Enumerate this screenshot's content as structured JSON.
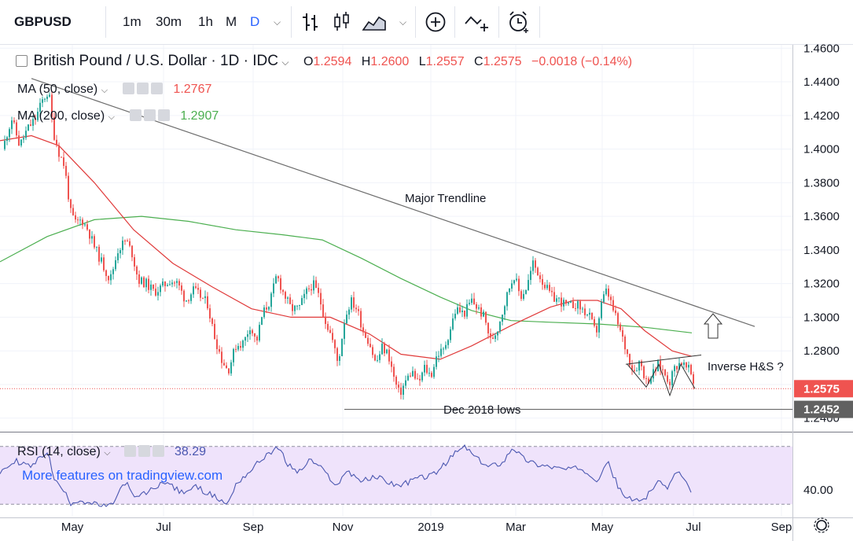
{
  "toolbar": {
    "symbol": "GBPUSD",
    "intervals": [
      "1m",
      "30m",
      "1h",
      "M",
      "D"
    ],
    "active_interval": "D",
    "icons": [
      "chevron-down-icon",
      "bar-style-icon",
      "candles-icon",
      "area-icon",
      "chevron-down-icon",
      "plus-circle-icon",
      "indicators-icon",
      "alarm-icon"
    ]
  },
  "legend": {
    "title": "British Pound / U.S. Dollar · 1D · IDC",
    "open_label": "O",
    "open": "1.2594",
    "high_label": "H",
    "high": "1.2600",
    "low_label": "L",
    "low": "1.2557",
    "close_label": "C",
    "close": "1.2575",
    "change": "−0.0018 (−0.14%)",
    "ma50_label": "MA (50, close)",
    "ma50_value": "1.2767",
    "ma200_label": "MA (200, close)",
    "ma200_value": "1.2907",
    "rsi_label": "RSI (14, close)",
    "rsi_value": "38.29"
  },
  "watermark": "More features on tradingview.com",
  "colors": {
    "up": "#26a69a",
    "down": "#ef5350",
    "ma50": "#e03a3a",
    "ma200": "#4caf50",
    "rsi": "#4a57b0",
    "rsi_band": "#efe3fb",
    "trend": "#6b6b6b",
    "text": "#131722"
  },
  "chart_data": {
    "type": "candlestick",
    "title": "British Pound / U.S. Dollar · 1D · IDC",
    "x_labels": [
      "May",
      "Jul",
      "Sep",
      "Nov",
      "2019",
      "Mar",
      "May",
      "Jul",
      "Sep"
    ],
    "y_ticks": [
      "1.4600",
      "1.4400",
      "1.4200",
      "1.4000",
      "1.3800",
      "1.3600",
      "1.3400",
      "1.3200",
      "1.3000",
      "1.2800",
      "1.2600",
      "1.2400"
    ],
    "ylim": [
      1.238,
      1.462
    ],
    "price_path": [
      [
        0,
        1.392
      ],
      [
        8,
        1.408
      ],
      [
        15,
        1.418
      ],
      [
        25,
        1.402
      ],
      [
        35,
        1.412
      ],
      [
        45,
        1.418
      ],
      [
        55,
        1.43
      ],
      [
        62,
        1.434
      ],
      [
        68,
        1.41
      ],
      [
        75,
        1.398
      ],
      [
        82,
        1.39
      ],
      [
        90,
        1.362
      ],
      [
        96,
        1.356
      ],
      [
        104,
        1.358
      ],
      [
        112,
        1.352
      ],
      [
        120,
        1.342
      ],
      [
        130,
        1.332
      ],
      [
        140,
        1.322
      ],
      [
        150,
        1.34
      ],
      [
        160,
        1.346
      ],
      [
        168,
        1.338
      ],
      [
        176,
        1.322
      ],
      [
        186,
        1.32
      ],
      [
        196,
        1.315
      ],
      [
        206,
        1.318
      ],
      [
        216,
        1.322
      ],
      [
        226,
        1.32
      ],
      [
        236,
        1.31
      ],
      [
        246,
        1.316
      ],
      [
        256,
        1.312
      ],
      [
        264,
        1.308
      ],
      [
        272,
        1.29
      ],
      [
        282,
        1.275
      ],
      [
        290,
        1.268
      ],
      [
        300,
        1.283
      ],
      [
        310,
        1.285
      ],
      [
        318,
        1.295
      ],
      [
        326,
        1.285
      ],
      [
        334,
        1.302
      ],
      [
        344,
        1.31
      ],
      [
        352,
        1.325
      ],
      [
        360,
        1.315
      ],
      [
        370,
        1.305
      ],
      [
        380,
        1.305
      ],
      [
        390,
        1.315
      ],
      [
        398,
        1.32
      ],
      [
        406,
        1.312
      ],
      [
        414,
        1.298
      ],
      [
        422,
        1.288
      ],
      [
        430,
        1.272
      ],
      [
        438,
        1.298
      ],
      [
        446,
        1.31
      ],
      [
        454,
        1.305
      ],
      [
        462,
        1.292
      ],
      [
        470,
        1.285
      ],
      [
        478,
        1.272
      ],
      [
        486,
        1.282
      ],
      [
        494,
        1.278
      ],
      [
        502,
        1.262
      ],
      [
        508,
        1.254
      ],
      [
        516,
        1.262
      ],
      [
        524,
        1.268
      ],
      [
        532,
        1.26
      ],
      [
        540,
        1.27
      ],
      [
        548,
        1.265
      ],
      [
        556,
        1.278
      ],
      [
        564,
        1.28
      ],
      [
        572,
        1.292
      ],
      [
        580,
        1.305
      ],
      [
        590,
        1.302
      ],
      [
        600,
        1.31
      ],
      [
        608,
        1.305
      ],
      [
        616,
        1.3
      ],
      [
        624,
        1.286
      ],
      [
        632,
        1.292
      ],
      [
        640,
        1.305
      ],
      [
        648,
        1.318
      ],
      [
        654,
        1.325
      ],
      [
        662,
        1.312
      ],
      [
        670,
        1.318
      ],
      [
        678,
        1.332
      ],
      [
        686,
        1.325
      ],
      [
        694,
        1.318
      ],
      [
        702,
        1.312
      ],
      [
        712,
        1.31
      ],
      [
        722,
        1.306
      ],
      [
        732,
        1.308
      ],
      [
        742,
        1.304
      ],
      [
        750,
        1.3
      ],
      [
        758,
        1.29
      ],
      [
        766,
        1.31
      ],
      [
        772,
        1.316
      ],
      [
        780,
        1.304
      ],
      [
        790,
        1.29
      ],
      [
        798,
        1.278
      ],
      [
        806,
        1.268
      ],
      [
        814,
        1.274
      ],
      [
        822,
        1.262
      ],
      [
        830,
        1.266
      ],
      [
        838,
        1.272
      ],
      [
        846,
        1.266
      ],
      [
        852,
        1.262
      ],
      [
        858,
        1.27
      ],
      [
        866,
        1.274
      ],
      [
        872,
        1.27
      ],
      [
        878,
        1.268
      ],
      [
        884,
        1.2575
      ]
    ],
    "ma50_path": [
      [
        0,
        1.405
      ],
      [
        40,
        1.408
      ],
      [
        75,
        1.402
      ],
      [
        120,
        1.38
      ],
      [
        170,
        1.352
      ],
      [
        220,
        1.332
      ],
      [
        270,
        1.318
      ],
      [
        320,
        1.305
      ],
      [
        370,
        1.3
      ],
      [
        420,
        1.3
      ],
      [
        470,
        1.29
      ],
      [
        510,
        1.278
      ],
      [
        560,
        1.275
      ],
      [
        600,
        1.283
      ],
      [
        650,
        1.295
      ],
      [
        700,
        1.306
      ],
      [
        730,
        1.31
      ],
      [
        760,
        1.31
      ],
      [
        790,
        1.305
      ],
      [
        820,
        1.292
      ],
      [
        855,
        1.28
      ],
      [
        880,
        1.2767
      ]
    ],
    "ma200_path": [
      [
        0,
        1.333
      ],
      [
        60,
        1.348
      ],
      [
        120,
        1.358
      ],
      [
        180,
        1.36
      ],
      [
        240,
        1.357
      ],
      [
        300,
        1.352
      ],
      [
        360,
        1.349
      ],
      [
        410,
        1.346
      ],
      [
        460,
        1.335
      ],
      [
        510,
        1.323
      ],
      [
        560,
        1.312
      ],
      [
        600,
        1.304
      ],
      [
        650,
        1.298
      ],
      [
        700,
        1.297
      ],
      [
        760,
        1.296
      ],
      [
        820,
        1.294
      ],
      [
        880,
        1.2907
      ]
    ],
    "major_trendline": [
      [
        40,
        1.442
      ],
      [
        960,
        1.2945
      ]
    ],
    "dec_2018_lows": 1.2452,
    "last_price": 1.2575,
    "price_labels": [
      "1.2575",
      "1.2452"
    ],
    "annotations": {
      "trendline": "Major Trendline",
      "dec_lows": "Dec 2018 lows",
      "pattern": "Inverse H&S ?"
    },
    "rsi": {
      "label": "RSI (14, close)",
      "value": 38.29,
      "ylim": [
        22,
        78
      ],
      "tick": "40.00",
      "band": [
        30,
        70
      ],
      "path": [
        [
          0,
          52
        ],
        [
          20,
          60
        ],
        [
          40,
          56
        ],
        [
          60,
          67
        ],
        [
          70,
          46
        ],
        [
          80,
          40
        ],
        [
          90,
          31
        ],
        [
          100,
          33
        ],
        [
          120,
          30
        ],
        [
          140,
          28
        ],
        [
          160,
          46
        ],
        [
          170,
          34
        ],
        [
          190,
          39
        ],
        [
          210,
          46
        ],
        [
          230,
          38
        ],
        [
          250,
          42
        ],
        [
          270,
          36
        ],
        [
          290,
          30
        ],
        [
          300,
          44
        ],
        [
          320,
          54
        ],
        [
          340,
          65
        ],
        [
          355,
          69
        ],
        [
          365,
          58
        ],
        [
          380,
          52
        ],
        [
          395,
          61
        ],
        [
          410,
          54
        ],
        [
          430,
          42
        ],
        [
          440,
          54
        ],
        [
          460,
          46
        ],
        [
          480,
          49
        ],
        [
          500,
          44
        ],
        [
          510,
          43
        ],
        [
          530,
          48
        ],
        [
          550,
          50
        ],
        [
          565,
          57
        ],
        [
          580,
          66
        ],
        [
          592,
          70
        ],
        [
          605,
          62
        ],
        [
          620,
          56
        ],
        [
          640,
          59
        ],
        [
          652,
          70
        ],
        [
          665,
          62
        ],
        [
          680,
          58
        ],
        [
          700,
          56
        ],
        [
          720,
          54
        ],
        [
          740,
          55
        ],
        [
          760,
          47
        ],
        [
          772,
          60
        ],
        [
          790,
          38
        ],
        [
          805,
          32
        ],
        [
          820,
          34
        ],
        [
          835,
          45
        ],
        [
          850,
          42
        ],
        [
          862,
          54
        ],
        [
          870,
          47
        ],
        [
          880,
          38.29
        ]
      ]
    }
  },
  "time_axis_icon": "gear-icon"
}
